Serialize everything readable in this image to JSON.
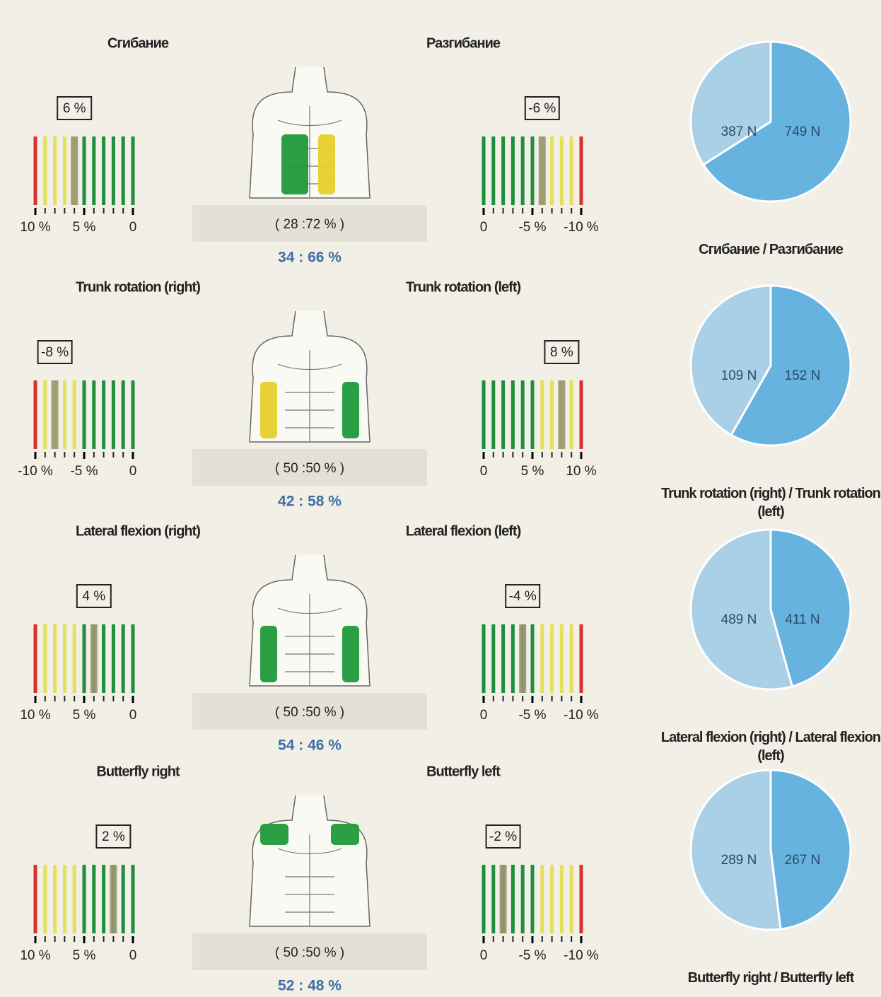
{
  "sections": [
    {
      "left": {
        "title": "Сгибание",
        "gauge": {
          "value": 6,
          "value_label": "6 %",
          "xlim": [
            10,
            0
          ],
          "xticks": [
            {
              "value": 10,
              "label": "10 %"
            },
            {
              "value": 5,
              "label": "5 %"
            },
            0
          ]
        }
      },
      "right": {
        "title": "Разгибание",
        "gauge": {
          "value": -6,
          "value_label": "-6 %",
          "xlim": [
            0,
            -10
          ],
          "xticks": [
            0,
            {
              "value": -5,
              "label": "-5 %"
            },
            {
              "value": -10,
              "label": "-10 %"
            }
          ]
        }
      },
      "ratio_reference": "( 28 :72 % )",
      "ratio": "34 : 66 %",
      "pie": {
        "values": [
          387,
          749
        ],
        "value_labels": [
          "387 N",
          "749 N"
        ],
        "caption": "Сгибание / Разгибание"
      }
    },
    {
      "left": {
        "title": "Trunk rotation (right)",
        "gauge": {
          "value": -8,
          "value_label": "-8 %",
          "xlim": [
            -10,
            0
          ],
          "xticks": [
            {
              "value": -10,
              "label": "-10 %"
            },
            {
              "value": -5,
              "label": "-5 %"
            },
            0
          ]
        }
      },
      "right": {
        "title": "Trunk rotation (left)",
        "gauge": {
          "value": 8,
          "value_label": "8 %",
          "xlim": [
            0,
            10
          ],
          "xticks": [
            0,
            {
              "value": 5,
              "label": "5 %"
            },
            {
              "value": 10,
              "label": "10 %"
            }
          ]
        }
      },
      "ratio_reference": "( 50 :50 % )",
      "ratio": "42 : 58 %",
      "pie": {
        "values": [
          109,
          152
        ],
        "value_labels": [
          "109 N",
          "152 N"
        ],
        "caption": "Trunk rotation (right) / Trunk rotation (left)"
      }
    },
    {
      "left": {
        "title": "Lateral flexion (right)",
        "gauge": {
          "value": 4,
          "value_label": "4 %",
          "xlim": [
            10,
            0
          ],
          "xticks": [
            {
              "value": 10,
              "label": "10 %"
            },
            {
              "value": 5,
              "label": "5 %"
            },
            0
          ]
        }
      },
      "right": {
        "title": "Lateral flexion (left)",
        "gauge": {
          "value": -4,
          "value_label": "-4 %",
          "xlim": [
            0,
            -10
          ],
          "xticks": [
            0,
            {
              "value": -5,
              "label": "-5 %"
            },
            {
              "value": -10,
              "label": "-10 %"
            }
          ]
        }
      },
      "ratio_reference": "( 50 :50 % )",
      "ratio": "54 : 46 %",
      "pie": {
        "values": [
          489,
          411
        ],
        "value_labels": [
          "489 N",
          "411 N"
        ],
        "caption": "Lateral flexion (right) / Lateral flexion (left)"
      }
    },
    {
      "left": {
        "title": "Butterfly right",
        "gauge": {
          "value": 2,
          "value_label": "2 %",
          "xlim": [
            10,
            0
          ],
          "xticks": [
            {
              "value": 10,
              "label": "10 %"
            },
            {
              "value": 5,
              "label": "5 %"
            },
            0
          ]
        }
      },
      "right": {
        "title": "Butterfly left",
        "gauge": {
          "value": -2,
          "value_label": "-2 %",
          "xlim": [
            0,
            -10
          ],
          "xticks": [
            0,
            {
              "value": -5,
              "label": "-5 %"
            },
            {
              "value": -10,
              "label": "-10 %"
            }
          ]
        }
      },
      "ratio_reference": "( 50 :50 % )",
      "ratio": "52 : 48 %",
      "pie": {
        "values": [
          289,
          267
        ],
        "value_labels": [
          "289 N",
          "267 N"
        ],
        "caption": "Butterfly right / Butterfly left"
      }
    }
  ]
}
